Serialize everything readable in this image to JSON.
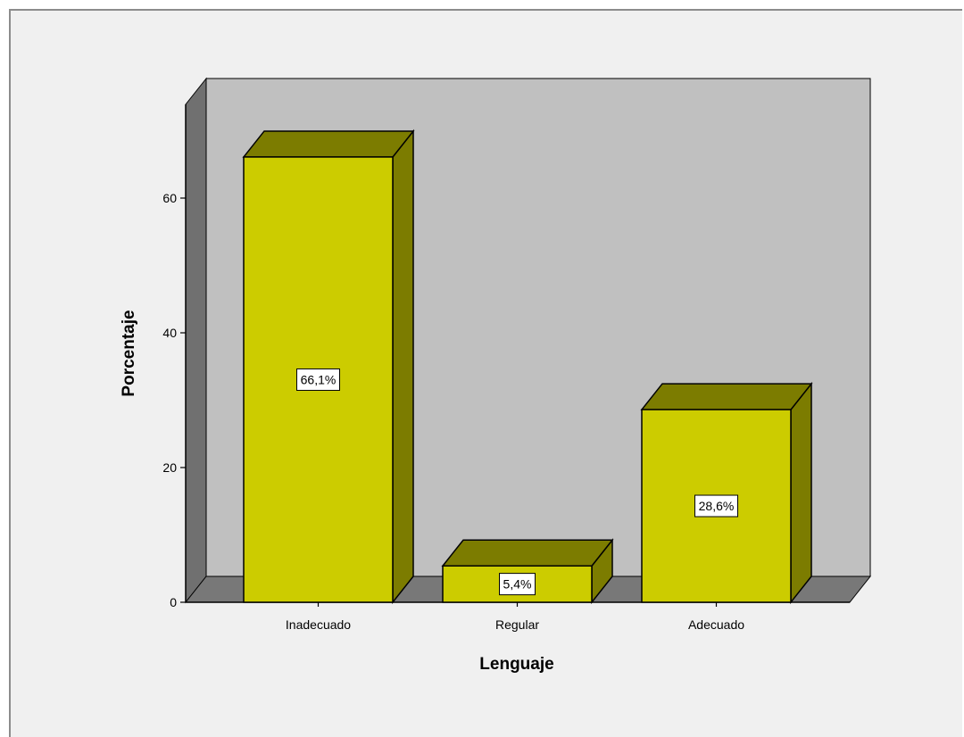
{
  "chart_data": {
    "type": "bar",
    "title": "",
    "xlabel": "Lenguaje",
    "ylabel": "Porcentaje",
    "categories": [
      "Inadecuado",
      "Regular",
      "Adecuado"
    ],
    "values": [
      66.1,
      5.4,
      28.6
    ],
    "data_labels": [
      "66,1%",
      "5,4%",
      "28,6%"
    ],
    "yticks": [
      0,
      20,
      40,
      60
    ],
    "ytick_labels": [
      "0",
      "20",
      "40",
      "60"
    ],
    "ylim": [
      0,
      70
    ],
    "grid": false,
    "legend": "none",
    "colors": {
      "bar_front": "#cccc00",
      "bar_side": "#7c7c00",
      "back_wall": "#c0c0c0",
      "side_wall": "#707070",
      "floor": "#787878",
      "background": "#f0f0f0"
    }
  }
}
